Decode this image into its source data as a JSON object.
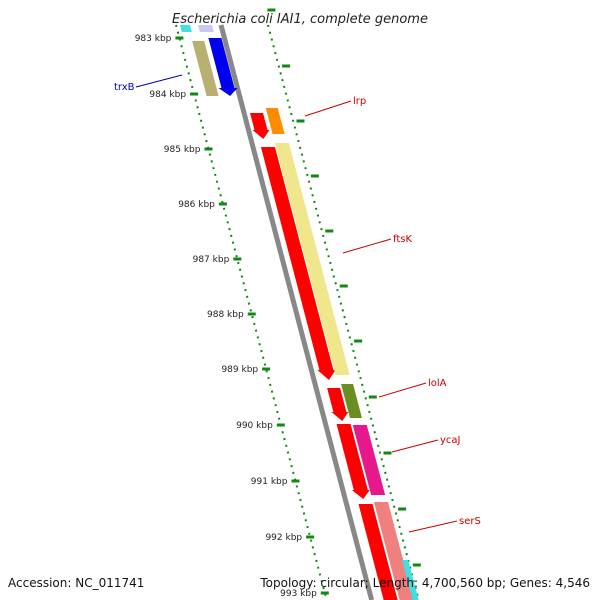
{
  "title": "Escherichia coli IAI1, complete genome",
  "accession": "Accession: NC_011741",
  "topology": "Topology: circular; Length: 4,700,560 bp; Genes: 4,546",
  "ticks": [
    "983 kbp",
    "984 kbp",
    "985 kbp",
    "986 kbp",
    "987 kbp",
    "988 kbp",
    "989 kbp",
    "990 kbp",
    "991 kbp",
    "992 kbp",
    "993 kbp"
  ],
  "genes": [
    {
      "name": "trxB",
      "color": "#0000ee",
      "strand": "forward"
    },
    {
      "name": "lrp",
      "color": "#ff8c00",
      "strand": "forward"
    },
    {
      "name": "ftsK",
      "color": "#f0e68c",
      "strand": "forward"
    },
    {
      "name": "lolA",
      "color": "#6b8e23",
      "strand": "forward"
    },
    {
      "name": "ycaJ",
      "color": "#e6198c",
      "strand": "forward"
    },
    {
      "name": "serS",
      "color": "#f08080",
      "strand": "forward"
    }
  ],
  "colors": {
    "backbone": "#888888",
    "ticks": "#118811",
    "cds": "#ff0000",
    "upstream_block": "#b8b070",
    "cyan_block": "#40e0e0"
  }
}
